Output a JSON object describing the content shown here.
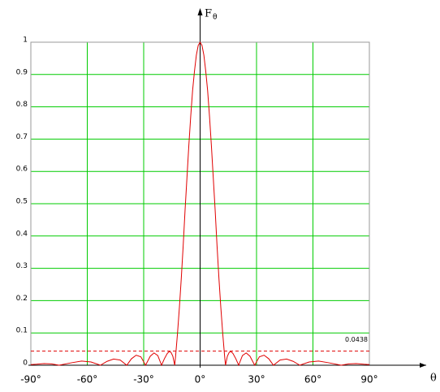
{
  "chart_data": {
    "type": "line",
    "ylabel": {
      "text": "F",
      "subscript": "θ"
    },
    "xlabel": "θ",
    "x": [
      -90,
      -87,
      -83,
      -79,
      -75,
      -68,
      -63,
      -58,
      -53,
      -49.5,
      -46,
      -42.5,
      -39,
      -36.5,
      -34,
      -31.5,
      -29,
      -26.5,
      -24.5,
      -22.5,
      -20.5,
      -19,
      -17.5,
      -16.5,
      -15.5,
      -14.5,
      -13.5,
      -13,
      -12,
      -11,
      -10,
      -9,
      -8,
      -7,
      -6,
      -5,
      -4,
      -3,
      -2,
      -1,
      0,
      1,
      2,
      3,
      4,
      5,
      6,
      7,
      8,
      9,
      10,
      11,
      12,
      13,
      13.5,
      14.5,
      15.5,
      16.5,
      17.5,
      19,
      20.5,
      22.5,
      24.5,
      26.5,
      29,
      31.5,
      34,
      36.5,
      39,
      42.5,
      46,
      49.5,
      53,
      58,
      63,
      68,
      75,
      79,
      83,
      87,
      90
    ],
    "series": [
      {
        "color": "#e00000",
        "values": [
          0.002,
          0.003,
          0.005,
          0.004,
          0,
          0.008,
          0.013,
          0.01,
          0,
          0.012,
          0.019,
          0.016,
          0,
          0.02,
          0.031,
          0.026,
          0,
          0.028,
          0.038,
          0.03,
          0,
          0.02,
          0.036,
          0.042,
          0.04,
          0.028,
          0,
          0.03,
          0.1,
          0.18,
          0.27,
          0.37,
          0.48,
          0.58,
          0.68,
          0.77,
          0.85,
          0.91,
          0.96,
          0.99,
          1,
          0.99,
          0.96,
          0.91,
          0.85,
          0.77,
          0.68,
          0.58,
          0.48,
          0.37,
          0.27,
          0.18,
          0.1,
          0.03,
          0,
          0.028,
          0.04,
          0.042,
          0.036,
          0.02,
          0,
          0.03,
          0.038,
          0.028,
          0,
          0.026,
          0.031,
          0.02,
          0,
          0.016,
          0.019,
          0.012,
          0,
          0.01,
          0.013,
          0.008,
          0,
          0.004,
          0.005,
          0.003,
          0.002
        ]
      }
    ],
    "hline": 0.0438,
    "xlim": [
      -90,
      90
    ],
    "ylim": [
      0,
      1
    ],
    "xticks": [
      {
        "value": -90,
        "label": "-90°"
      },
      {
        "value": -60,
        "label": "-60°"
      },
      {
        "value": -30,
        "label": "-30°"
      },
      {
        "value": 0,
        "label": "0°"
      },
      {
        "value": 30,
        "label": "30°"
      },
      {
        "value": 60,
        "label": "60°"
      },
      {
        "value": 90,
        "label": "90°"
      }
    ],
    "yticks": [
      0,
      0.1,
      0.2,
      0.3,
      0.4,
      0.5,
      0.6,
      0.7,
      0.8,
      0.9,
      1
    ],
    "grid": true,
    "grid_color": "#00cc00"
  }
}
